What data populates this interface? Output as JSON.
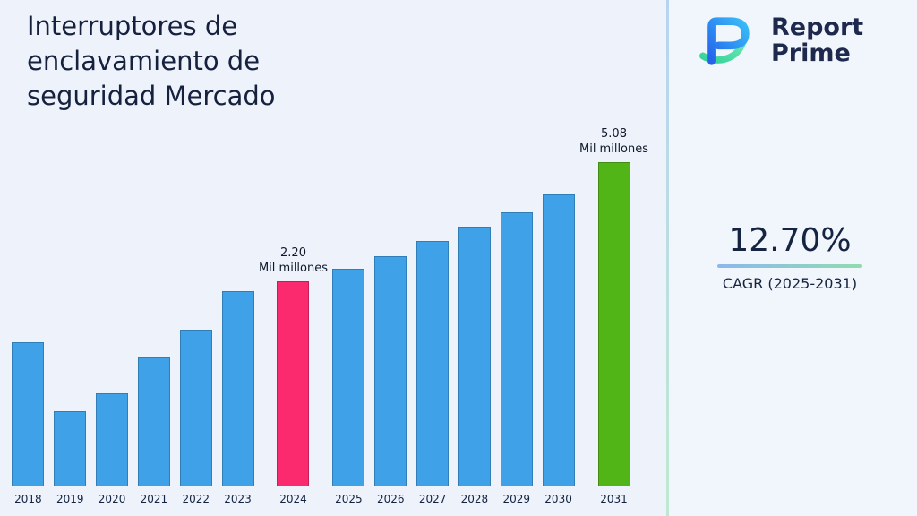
{
  "title": "Interruptores de enclavamiento de seguridad Mercado",
  "logo": {
    "line1": "Report",
    "line2": "Prime"
  },
  "cagr": {
    "value": "12.70%",
    "label": "CAGR (2025-2031)"
  },
  "chart_data": {
    "type": "bar",
    "title": "Interruptores de enclavamiento de seguridad Mercado",
    "unit": "Mil millones",
    "xlabel": "",
    "ylabel": "",
    "gridlines": false,
    "y_axis_visible": false,
    "categories": [
      "2018",
      "2019",
      "2020",
      "2021",
      "2022",
      "2023",
      "2024",
      "2025",
      "2026",
      "2027",
      "2028",
      "2029",
      "2030",
      "2031"
    ],
    "colors": {
      "default": "#3fa2e9",
      "highlight_2024": "#fb2a6f",
      "highlight_2031": "#52b517"
    },
    "bars": [
      {
        "year": "2018",
        "rel_height": 0.444,
        "value": null,
        "color": "#3fa2e9",
        "label": null
      },
      {
        "year": "2019",
        "rel_height": 0.231,
        "value": null,
        "color": "#3fa2e9",
        "label": null
      },
      {
        "year": "2020",
        "rel_height": 0.286,
        "value": null,
        "color": "#3fa2e9",
        "label": null
      },
      {
        "year": "2021",
        "rel_height": 0.397,
        "value": null,
        "color": "#3fa2e9",
        "label": null
      },
      {
        "year": "2022",
        "rel_height": 0.483,
        "value": null,
        "color": "#3fa2e9",
        "label": null
      },
      {
        "year": "2023",
        "rel_height": 0.603,
        "value": null,
        "color": "#3fa2e9",
        "label": null
      },
      {
        "year": "2024",
        "rel_height": 0.633,
        "value": 2.2,
        "color": "#fb2a6f",
        "label": {
          "value": "2.20",
          "unit": "Mil millones"
        }
      },
      {
        "year": "2025",
        "rel_height": 0.672,
        "value": null,
        "color": "#3fa2e9",
        "label": null
      },
      {
        "year": "2026",
        "rel_height": 0.711,
        "value": null,
        "color": "#3fa2e9",
        "label": null
      },
      {
        "year": "2027",
        "rel_height": 0.756,
        "value": null,
        "color": "#3fa2e9",
        "label": null
      },
      {
        "year": "2028",
        "rel_height": 0.8,
        "value": null,
        "color": "#3fa2e9",
        "label": null
      },
      {
        "year": "2029",
        "rel_height": 0.844,
        "value": null,
        "color": "#3fa2e9",
        "label": null
      },
      {
        "year": "2030",
        "rel_height": 0.9,
        "value": null,
        "color": "#3fa2e9",
        "label": null
      },
      {
        "year": "2031",
        "rel_height": 1.0,
        "value": 5.08,
        "color": "#52b517",
        "label": {
          "value": "5.08",
          "unit": "Mil millones"
        }
      }
    ]
  }
}
